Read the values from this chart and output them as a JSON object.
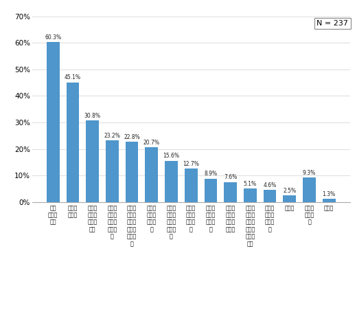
{
  "n_label": "N = 237",
  "categories": [
    "元本保証がない",
    "手数料が高い",
    "運用実績がわかりにくい",
    "安心できない公社債に比べて",
    "情報が少ない購入後の運用に関する",
    "種類が多く選択に迷う",
    "面白さに欠ける株式に比べて",
    "利回りがものたりない",
    "なんとなくなじめない",
    "購入手続きがわずらわしい",
    "銀行等の店舗がない近くに証券会社・",
    "クローズド期間がある",
    "その他",
    "よくわからない",
    "無回答"
  ],
  "x_labels": [
    "元本\n保証が\nない",
    "手数料\nが高い",
    "運用実\n績がわ\nかりに\nくい",
    "安心で\nきない\n公社債\nに比べ\nて",
    "情報が\n少ない\n購入後\nの運用\nに関す\nる",
    "種類が\n多く選\n択に迷\nう",
    "面白さ\nに欠け\nる株式\nに比べ\nて",
    "利回り\nがもの\nたりな\nい",
    "なんと\nなくな\nじめな\nい",
    "購入手\n続きが\nわずら\nわしい",
    "銀行等\nの店舗\nがない\n近くに\n証券会\n社・",
    "クロー\nズド期\n間があ\nる",
    "その他",
    "よくわ\nからな\nい",
    "無回答"
  ],
  "values": [
    60.3,
    45.1,
    30.8,
    23.2,
    22.8,
    20.7,
    15.6,
    12.7,
    8.9,
    7.6,
    5.1,
    4.6,
    2.5,
    9.3,
    1.3
  ],
  "bar_color": "#4e96cb",
  "ylim": [
    0,
    70
  ],
  "yticks": [
    0,
    10,
    20,
    30,
    40,
    50,
    60,
    70
  ],
  "value_labels": [
    "60.3%",
    "45.1%",
    "30.8%",
    "23.2%",
    "22.8%",
    "20.7%",
    "15.6%",
    "12.7%",
    "8.9%",
    "7.6%",
    "5.1%",
    "4.6%",
    "2.5%",
    "9.3%",
    "1.3%"
  ],
  "background_color": "#ffffff",
  "grid_color": "#e0e0e0"
}
